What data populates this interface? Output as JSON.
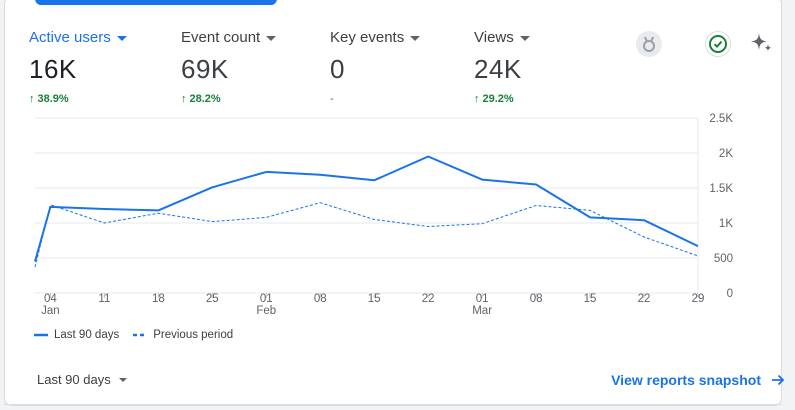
{
  "metrics": [
    {
      "label": "Active users",
      "value": "16K",
      "change": "38.9%",
      "trend": "up",
      "active": true
    },
    {
      "label": "Event count",
      "value": "69K",
      "change": "28.2%",
      "trend": "up",
      "active": false
    },
    {
      "label": "Key events",
      "value": "0",
      "change": "-",
      "trend": "none",
      "active": false
    },
    {
      "label": "Views",
      "value": "24K",
      "change": "29.2%",
      "trend": "up",
      "active": false
    }
  ],
  "icons": {
    "insights": "medal-icon",
    "check": "check-circle-icon",
    "sparkle": "sparkle-icon"
  },
  "legend": {
    "current": "Last 90 days",
    "previous": "Previous period"
  },
  "date_range": "Last 90 days",
  "snapshot_link": "View reports snapshot",
  "colors": {
    "accent": "#1a73e8",
    "positive": "#188038"
  },
  "chart_data": {
    "type": "line",
    "x_ticks": [
      {
        "day": "04",
        "month": "Jan",
        "index": 2
      },
      {
        "day": "11",
        "month": "",
        "index": 9
      },
      {
        "day": "18",
        "month": "",
        "index": 16
      },
      {
        "day": "25",
        "month": "",
        "index": 23
      },
      {
        "day": "01",
        "month": "Feb",
        "index": 30
      },
      {
        "day": "08",
        "month": "",
        "index": 37
      },
      {
        "day": "15",
        "month": "",
        "index": 44
      },
      {
        "day": "22",
        "month": "",
        "index": 51
      },
      {
        "day": "01",
        "month": "Mar",
        "index": 58
      },
      {
        "day": "08",
        "month": "",
        "index": 65
      },
      {
        "day": "15",
        "month": "",
        "index": 72
      },
      {
        "day": "22",
        "month": "",
        "index": 79
      },
      {
        "day": "29",
        "month": "",
        "index": 86
      }
    ],
    "x_range": [
      0,
      86
    ],
    "y_ticks": [
      0,
      500,
      1000,
      1500,
      2000,
      2500
    ],
    "y_tick_labels": [
      "0",
      "500",
      "1K",
      "1.5K",
      "2K",
      "2.5K"
    ],
    "ylim": [
      0,
      2500
    ],
    "series": [
      {
        "name": "Last 90 days",
        "style": "solid",
        "points": [
          [
            0,
            450
          ],
          [
            2,
            1230
          ],
          [
            9,
            1200
          ],
          [
            16,
            1180
          ],
          [
            23,
            1510
          ],
          [
            30,
            1730
          ],
          [
            37,
            1690
          ],
          [
            44,
            1610
          ],
          [
            51,
            1950
          ],
          [
            58,
            1620
          ],
          [
            65,
            1550
          ],
          [
            72,
            1080
          ],
          [
            79,
            1040
          ],
          [
            86,
            670
          ]
        ]
      },
      {
        "name": "Previous period",
        "style": "dashed",
        "points": [
          [
            0,
            370
          ],
          [
            2,
            1260
          ],
          [
            9,
            1000
          ],
          [
            16,
            1140
          ],
          [
            23,
            1020
          ],
          [
            30,
            1080
          ],
          [
            37,
            1290
          ],
          [
            44,
            1050
          ],
          [
            51,
            950
          ],
          [
            58,
            990
          ],
          [
            65,
            1250
          ],
          [
            72,
            1180
          ],
          [
            79,
            800
          ],
          [
            86,
            530
          ]
        ]
      }
    ]
  }
}
